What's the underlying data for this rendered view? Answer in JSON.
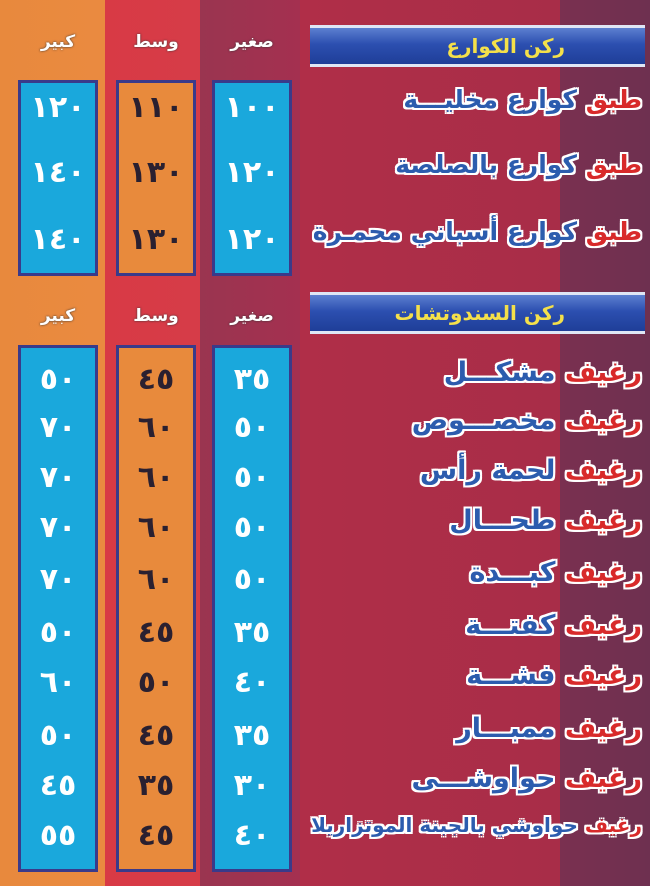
{
  "sizes": {
    "small": "صغير",
    "medium": "وسط",
    "large": "كبير"
  },
  "colors": {
    "orange": "#e8893d",
    "red": "#d83a45",
    "cyan": "#1aa8dc",
    "banner": "#2c4fb0",
    "title_yellow": "#f4e04a"
  },
  "sections": [
    {
      "title": "ركن الكوارع",
      "items": [
        {
          "prefix": "طبق",
          "name": "كوارع مخليـــة",
          "small": "١٠٠",
          "medium": "١١٠",
          "large": "١٢٠"
        },
        {
          "prefix": "طبق",
          "name": "كوارع بالصلصة",
          "small": "١٢٠",
          "medium": "١٣٠",
          "large": "١٤٠"
        },
        {
          "prefix": "طبق",
          "name": "كوارع أسباني محمـرة",
          "small": "١٢٠",
          "medium": "١٣٠",
          "large": "١٤٠"
        }
      ]
    },
    {
      "title": "ركن السندوتشات",
      "items": [
        {
          "prefix": "رغيف",
          "name": "مشكـــل",
          "small": "٣٥",
          "medium": "٤٥",
          "large": "٥٠"
        },
        {
          "prefix": "رغيف",
          "name": "مخصـــوص",
          "small": "٥٠",
          "medium": "٦٠",
          "large": "٧٠"
        },
        {
          "prefix": "رغيف",
          "name": "لحمة رأس",
          "small": "٥٠",
          "medium": "٦٠",
          "large": "٧٠"
        },
        {
          "prefix": "رغيف",
          "name": "طحـــال",
          "small": "٥٠",
          "medium": "٦٠",
          "large": "٧٠"
        },
        {
          "prefix": "رغيف",
          "name": "كبـــدة",
          "small": "٥٠",
          "medium": "٦٠",
          "large": "٧٠"
        },
        {
          "prefix": "رغيف",
          "name": "كفتـــة",
          "small": "٣٥",
          "medium": "٤٥",
          "large": "٥٠"
        },
        {
          "prefix": "رغيف",
          "name": "فشـــة",
          "small": "٤٠",
          "medium": "٥٠",
          "large": "٦٠"
        },
        {
          "prefix": "رغيف",
          "name": "ممبـــار",
          "small": "٣٥",
          "medium": "٤٥",
          "large": "٥٠"
        },
        {
          "prefix": "رغيف",
          "name": "حواوشـــى",
          "small": "٣٠",
          "medium": "٣٥",
          "large": "٤٥"
        },
        {
          "prefix": "رغيف",
          "name": "حواوشي بالجبنة الموتزاريلا",
          "small": "٤٠",
          "medium": "٤٥",
          "large": "٥٥"
        }
      ]
    }
  ]
}
